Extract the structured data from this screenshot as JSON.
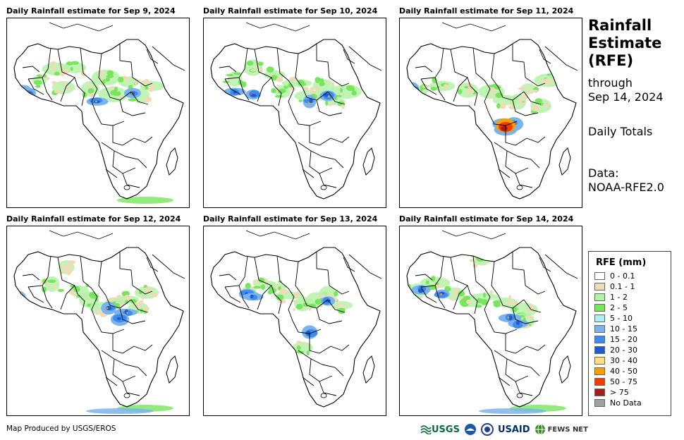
{
  "panels": [
    {
      "title": "Daily Rainfall estimate for Sep 9, 2024"
    },
    {
      "title": "Daily Rainfall estimate for Sep 10, 2024"
    },
    {
      "title": "Daily Rainfall estimate for Sep 11, 2024"
    },
    {
      "title": "Daily Rainfall estimate for Sep 12, 2024"
    },
    {
      "title": "Daily Rainfall estimate for Sep 13, 2024"
    },
    {
      "title": "Daily Rainfall estimate for Sep 14, 2024"
    }
  ],
  "title_block": {
    "line1": "Rainfall",
    "line2": "Estimate",
    "line3": "(RFE)",
    "through": "through",
    "date": "Sep 14, 2024",
    "totals": "Daily Totals",
    "data_label": "Data:",
    "data_source": "NOAA-RFE2.0"
  },
  "legend": {
    "title": "RFE (mm)",
    "items": [
      {
        "label": "0 - 0.1",
        "color": "#ffffff"
      },
      {
        "label": "0.1 - 1",
        "color": "#eedcb8"
      },
      {
        "label": "1 - 2",
        "color": "#b4f2a8"
      },
      {
        "label": "2 - 5",
        "color": "#78e65c"
      },
      {
        "label": "5 - 10",
        "color": "#aeeef0"
      },
      {
        "label": "10 - 15",
        "color": "#7ab4ec"
      },
      {
        "label": "15 - 20",
        "color": "#3c8cf0"
      },
      {
        "label": "20 - 30",
        "color": "#1e5ad2"
      },
      {
        "label": "30 - 40",
        "color": "#ffe080"
      },
      {
        "label": "40 - 50",
        "color": "#f5a000"
      },
      {
        "label": "50 - 75",
        "color": "#f03c00"
      },
      {
        "label": "> 75",
        "color": "#a01e1e"
      },
      {
        "label": "No Data",
        "color": "#a0a0a0"
      }
    ]
  },
  "footer": {
    "credit": "Map Produced by USGS/EROS",
    "logos": [
      "USGS",
      "USAID",
      "FEWS NET"
    ]
  }
}
